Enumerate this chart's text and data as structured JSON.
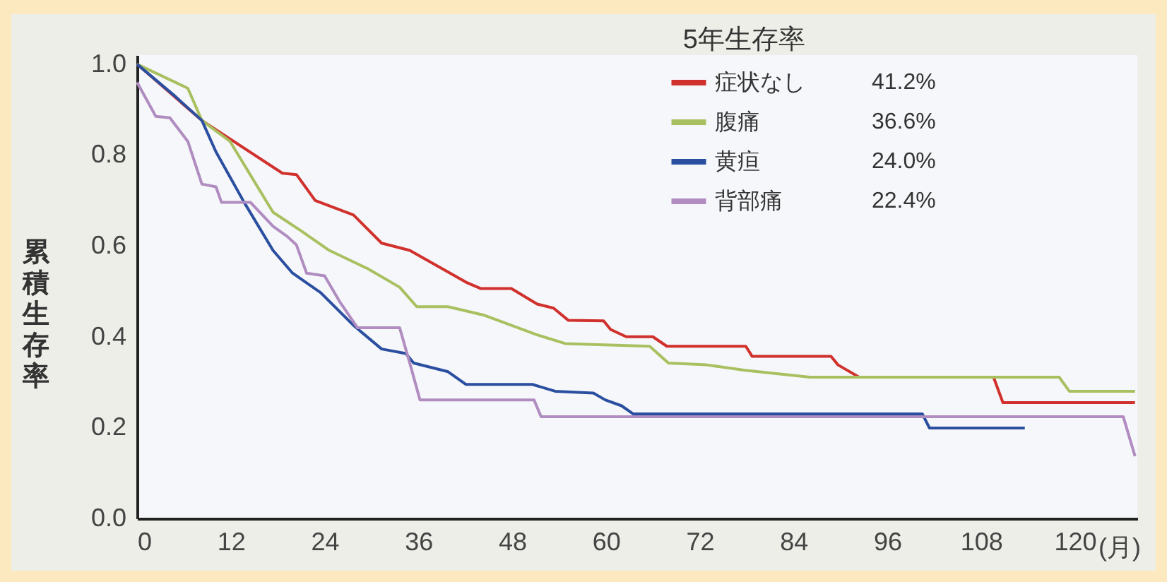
{
  "chart_data": {
    "type": "line",
    "ylabel": "累積生存率",
    "xlabel": "(月)",
    "legend_title": "5年生存率",
    "legend": "top right",
    "marker": "none",
    "line_style": "solid",
    "grid": false,
    "xlim": [
      0,
      128
    ],
    "xticks": [
      0,
      12,
      24,
      36,
      48,
      60,
      72,
      84,
      96,
      108,
      120
    ],
    "ylim": [
      0,
      1.02
    ],
    "yticks": [
      {
        "value": 0,
        "label": "0.0"
      },
      {
        "value": 0.2,
        "label": "0.2"
      },
      {
        "value": 0.4,
        "label": "0.4"
      },
      {
        "value": 0.6,
        "label": "0.6"
      },
      {
        "value": 0.8,
        "label": "0.8"
      },
      {
        "value": 1,
        "label": "1.0"
      }
    ],
    "annotations": [
      "41.2%",
      "36.6%",
      "24.0%",
      "22.4%"
    ],
    "series": [
      {
        "name": "症状なし",
        "color": "#d0312d",
        "x": [
          0,
          8.3,
          18.6,
          20.4,
          22.8,
          27.7,
          31.3,
          34.9,
          42.1,
          44,
          47.9,
          51.2,
          53.3,
          55.2,
          59.7,
          60.6,
          62.6,
          66,
          67.8,
          77.9,
          78.7,
          88.8,
          89.7,
          92.4,
          109.6,
          110.8,
          127.7
        ],
        "values": [
          1,
          0.876,
          0.76,
          0.757,
          0.7,
          0.668,
          0.606,
          0.59,
          0.52,
          0.506,
          0.506,
          0.472,
          0.463,
          0.436,
          0.435,
          0.416,
          0.4,
          0.4,
          0.379,
          0.379,
          0.357,
          0.357,
          0.338,
          0.311,
          0.311,
          0.255,
          0.255
        ]
      },
      {
        "name": "腹痛",
        "color": "#a8c060",
        "x": [
          0,
          6.5,
          8.3,
          11.9,
          17.4,
          21,
          24.6,
          29.5,
          33.6,
          35.8,
          39.8,
          44.5,
          51.2,
          54.8,
          65.6,
          68,
          72.9,
          77.8,
          86.1,
          118,
          119.3,
          127.7
        ],
        "values": [
          1,
          0.947,
          0.876,
          0.83,
          0.674,
          0.633,
          0.59,
          0.55,
          0.509,
          0.466,
          0.466,
          0.447,
          0.404,
          0.385,
          0.379,
          0.342,
          0.338,
          0.326,
          0.311,
          0.311,
          0.28,
          0.28
        ]
      },
      {
        "name": "黄疸",
        "color": "#2b4fa0",
        "x": [
          0,
          4.7,
          8.3,
          10.1,
          13.7,
          17.4,
          19.9,
          23.5,
          27.7,
          31.3,
          34.4,
          35.4,
          39.8,
          42.1,
          50.6,
          53.5,
          58.4,
          59.9,
          62,
          63.5,
          100.5,
          101.4,
          113.6
        ],
        "values": [
          1,
          0.932,
          0.876,
          0.807,
          0.696,
          0.59,
          0.54,
          0.497,
          0.425,
          0.373,
          0.363,
          0.342,
          0.323,
          0.295,
          0.295,
          0.28,
          0.276,
          0.261,
          0.248,
          0.23,
          0.23,
          0.199,
          0.199
        ]
      },
      {
        "name": "背部痛",
        "color": "#b08cc0",
        "x": [
          0,
          2.4,
          4.2,
          6.5,
          8.3,
          10.1,
          10.8,
          14.5,
          17.4,
          19.2,
          20.4,
          21.7,
          24,
          25.9,
          28.2,
          33.6,
          34.9,
          36.2,
          50.8,
          51.7,
          126.2,
          127.7
        ],
        "values": [
          0.96,
          0.885,
          0.882,
          0.83,
          0.736,
          0.73,
          0.696,
          0.696,
          0.643,
          0.621,
          0.602,
          0.54,
          0.534,
          0.478,
          0.42,
          0.42,
          0.342,
          0.261,
          0.261,
          0.224,
          0.224,
          0.137
        ]
      }
    ]
  }
}
